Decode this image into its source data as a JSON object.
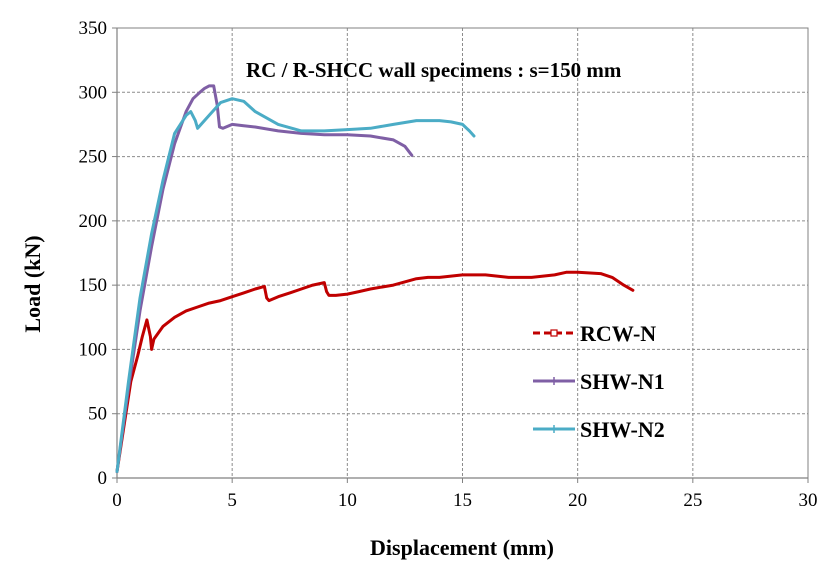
{
  "chart_data": {
    "type": "line",
    "title": "RC / R-SHCC wall specimens : s=150 mm",
    "xlabel": "Displacement (mm)",
    "ylabel": "Load  (kN)",
    "xlim": [
      0,
      30
    ],
    "ylim": [
      0,
      350
    ],
    "xticks": [
      0,
      5,
      10,
      15,
      20,
      25,
      30
    ],
    "yticks": [
      0,
      50,
      100,
      150,
      200,
      250,
      300,
      350
    ],
    "grid": true,
    "legend_position": "center-right",
    "series": [
      {
        "name": "RCW-N",
        "color": "#C00000",
        "x": [
          0,
          0.3,
          0.6,
          0.9,
          1.1,
          1.3,
          1.45,
          1.5,
          1.6,
          2.0,
          2.5,
          3.0,
          3.5,
          4.0,
          4.5,
          5.0,
          5.5,
          6.0,
          6.4,
          6.5,
          6.6,
          7.0,
          7.5,
          8.0,
          8.5,
          9.0,
          9.1,
          9.2,
          9.5,
          10.0,
          10.5,
          11.0,
          12.0,
          13.0,
          13.5,
          14.0,
          14.5,
          15.0,
          16.0,
          16.5,
          17.0,
          18.0,
          19.0,
          19.5,
          20.0,
          21.0,
          21.5,
          22.0,
          22.4
        ],
        "y": [
          5,
          40,
          75,
          95,
          110,
          123,
          110,
          100,
          108,
          118,
          125,
          130,
          133,
          136,
          138,
          141,
          144,
          147,
          149,
          140,
          138,
          141,
          144,
          147,
          150,
          152,
          145,
          142,
          142,
          143,
          145,
          147,
          150,
          155,
          156,
          156,
          157,
          158,
          158,
          157,
          156,
          156,
          158,
          160,
          160,
          159,
          156,
          150,
          146
        ]
      },
      {
        "name": "SHW-N1",
        "color": "#7F5FA5",
        "x": [
          0,
          0.5,
          1.0,
          1.5,
          2.0,
          2.5,
          3.0,
          3.3,
          3.6,
          3.8,
          4.0,
          4.2,
          4.35,
          4.45,
          4.6,
          5.0,
          5.5,
          6.0,
          7.0,
          8.0,
          9.0,
          10.0,
          11.0,
          12.0,
          12.5,
          12.8
        ],
        "y": [
          5,
          70,
          130,
          180,
          225,
          260,
          285,
          295,
          300,
          303,
          305,
          305,
          290,
          273,
          272,
          275,
          274,
          273,
          270,
          268,
          267,
          267,
          266,
          263,
          258,
          251
        ]
      },
      {
        "name": "SHW-N2",
        "color": "#4BACC6",
        "x": [
          0,
          0.5,
          1.0,
          1.5,
          2.0,
          2.5,
          3.0,
          3.2,
          3.4,
          3.5,
          4.0,
          4.5,
          5.0,
          5.5,
          6.0,
          7.0,
          8.0,
          9.0,
          10.0,
          11.0,
          12.0,
          13.0,
          13.5,
          14.0,
          14.5,
          15.0,
          15.3,
          15.5
        ],
        "y": [
          5,
          75,
          140,
          190,
          232,
          268,
          282,
          285,
          278,
          272,
          282,
          292,
          295,
          293,
          285,
          275,
          270,
          270,
          271,
          272,
          275,
          278,
          278,
          278,
          277,
          275,
          270,
          266
        ]
      }
    ]
  }
}
